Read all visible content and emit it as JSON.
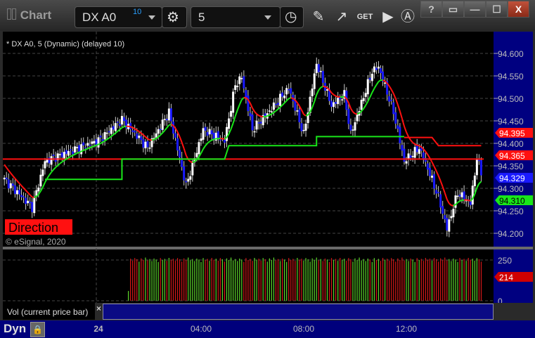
{
  "window": {
    "title": "Chart",
    "buttons": [
      "?",
      "▭",
      "—",
      "☐",
      "X"
    ]
  },
  "toolbar": {
    "symbol": "DX A0",
    "symbol_badge": "10",
    "interval": "5",
    "icons": [
      "gear-icon",
      "clock-icon",
      "pencil-icon",
      "study-icon",
      "get-icon",
      "play-icon",
      "alert-icon"
    ],
    "get_label": "GET"
  },
  "chart": {
    "legend": "* DX A0, 5 (Dynamic) (delayed 10)",
    "direction_label": "Direction",
    "copyright": "© eSignal, 2020",
    "colors": {
      "up": "#ffffff",
      "down": "#1a1aff",
      "red": "#ff1010",
      "green": "#19e619",
      "axis_bg": "#000080"
    }
  },
  "chart_data": {
    "type": "candlestick",
    "price_ticks": [
      "94.600",
      "94.550",
      "94.500",
      "94.450",
      "94.400",
      "94.350",
      "94.300",
      "94.250",
      "94.200"
    ],
    "ylim": [
      94.19,
      94.64
    ],
    "close_keypoints": [
      [
        "20:20",
        94.32
      ],
      [
        "21:25",
        94.258
      ],
      [
        "21:55",
        94.36
      ],
      [
        "22:55",
        94.383
      ],
      [
        "00:00",
        94.406
      ],
      [
        "00:55",
        94.453
      ],
      [
        "01:55",
        94.39
      ],
      [
        "02:45",
        94.469
      ],
      [
        "03:25",
        94.305
      ],
      [
        "04:05",
        94.43
      ],
      [
        "04:55",
        94.406
      ],
      [
        "05:20",
        94.53
      ],
      [
        "05:35",
        94.547
      ],
      [
        "06:00",
        94.43
      ],
      [
        "06:45",
        94.477
      ],
      [
        "07:25",
        94.523
      ],
      [
        "08:00",
        94.42
      ],
      [
        "08:30",
        94.578
      ],
      [
        "09:05",
        94.484
      ],
      [
        "09:35",
        94.508
      ],
      [
        "09:50",
        94.42
      ],
      [
        "10:40",
        94.56
      ],
      [
        "10:55",
        94.57
      ],
      [
        "11:30",
        94.47
      ],
      [
        "11:55",
        94.36
      ],
      [
        "12:30",
        94.39
      ],
      [
        "12:50",
        94.344
      ],
      [
        "13:15",
        94.28
      ],
      [
        "13:35",
        94.21
      ],
      [
        "14:00",
        94.29
      ],
      [
        "14:30",
        94.266
      ],
      [
        "14:45",
        94.367
      ],
      [
        "14:55",
        94.336
      ]
    ],
    "green_step": [
      [
        "21:55",
        94.32
      ],
      [
        "00:55",
        94.32
      ],
      [
        "00:55",
        94.365
      ],
      [
        "04:55",
        94.365
      ],
      [
        "05:05",
        94.395
      ],
      [
        "08:30",
        94.395
      ],
      [
        "08:30",
        94.415
      ],
      [
        "11:55",
        94.415
      ]
    ],
    "red_step": [
      [
        "11:55",
        94.413
      ],
      [
        "13:00",
        94.413
      ],
      [
        "13:15",
        94.395
      ],
      [
        "14:55",
        94.395
      ]
    ],
    "red_level": 94.365,
    "price_labels": [
      {
        "value": "94.395",
        "color": "#ff1010"
      },
      {
        "value": "94.365",
        "color": "#ff1010"
      },
      {
        "value": "94.329",
        "color": "#1a1aff"
      },
      {
        "value": "94.310",
        "color": "#19e619"
      }
    ],
    "volume": {
      "start": "01:10",
      "ticks": [
        "250",
        "0"
      ],
      "ylim": [
        0,
        330
      ],
      "last": "214",
      "values": [
        252,
        258,
        246,
        262,
        255,
        240,
        260,
        250,
        265,
        248,
        256,
        244,
        259,
        253,
        238,
        262,
        250,
        257,
        245,
        263
      ]
    },
    "time_labels": [
      {
        "t": "00:00",
        "label": "24"
      },
      {
        "t": "04:00",
        "label": "04:00"
      },
      {
        "t": "08:00",
        "label": "08:00"
      },
      {
        "t": "12:00",
        "label": "12:00"
      }
    ]
  },
  "volume_panel": {
    "label": "Vol (current price bar)",
    "close": "×"
  },
  "bottom": {
    "mode": "Dyn"
  }
}
